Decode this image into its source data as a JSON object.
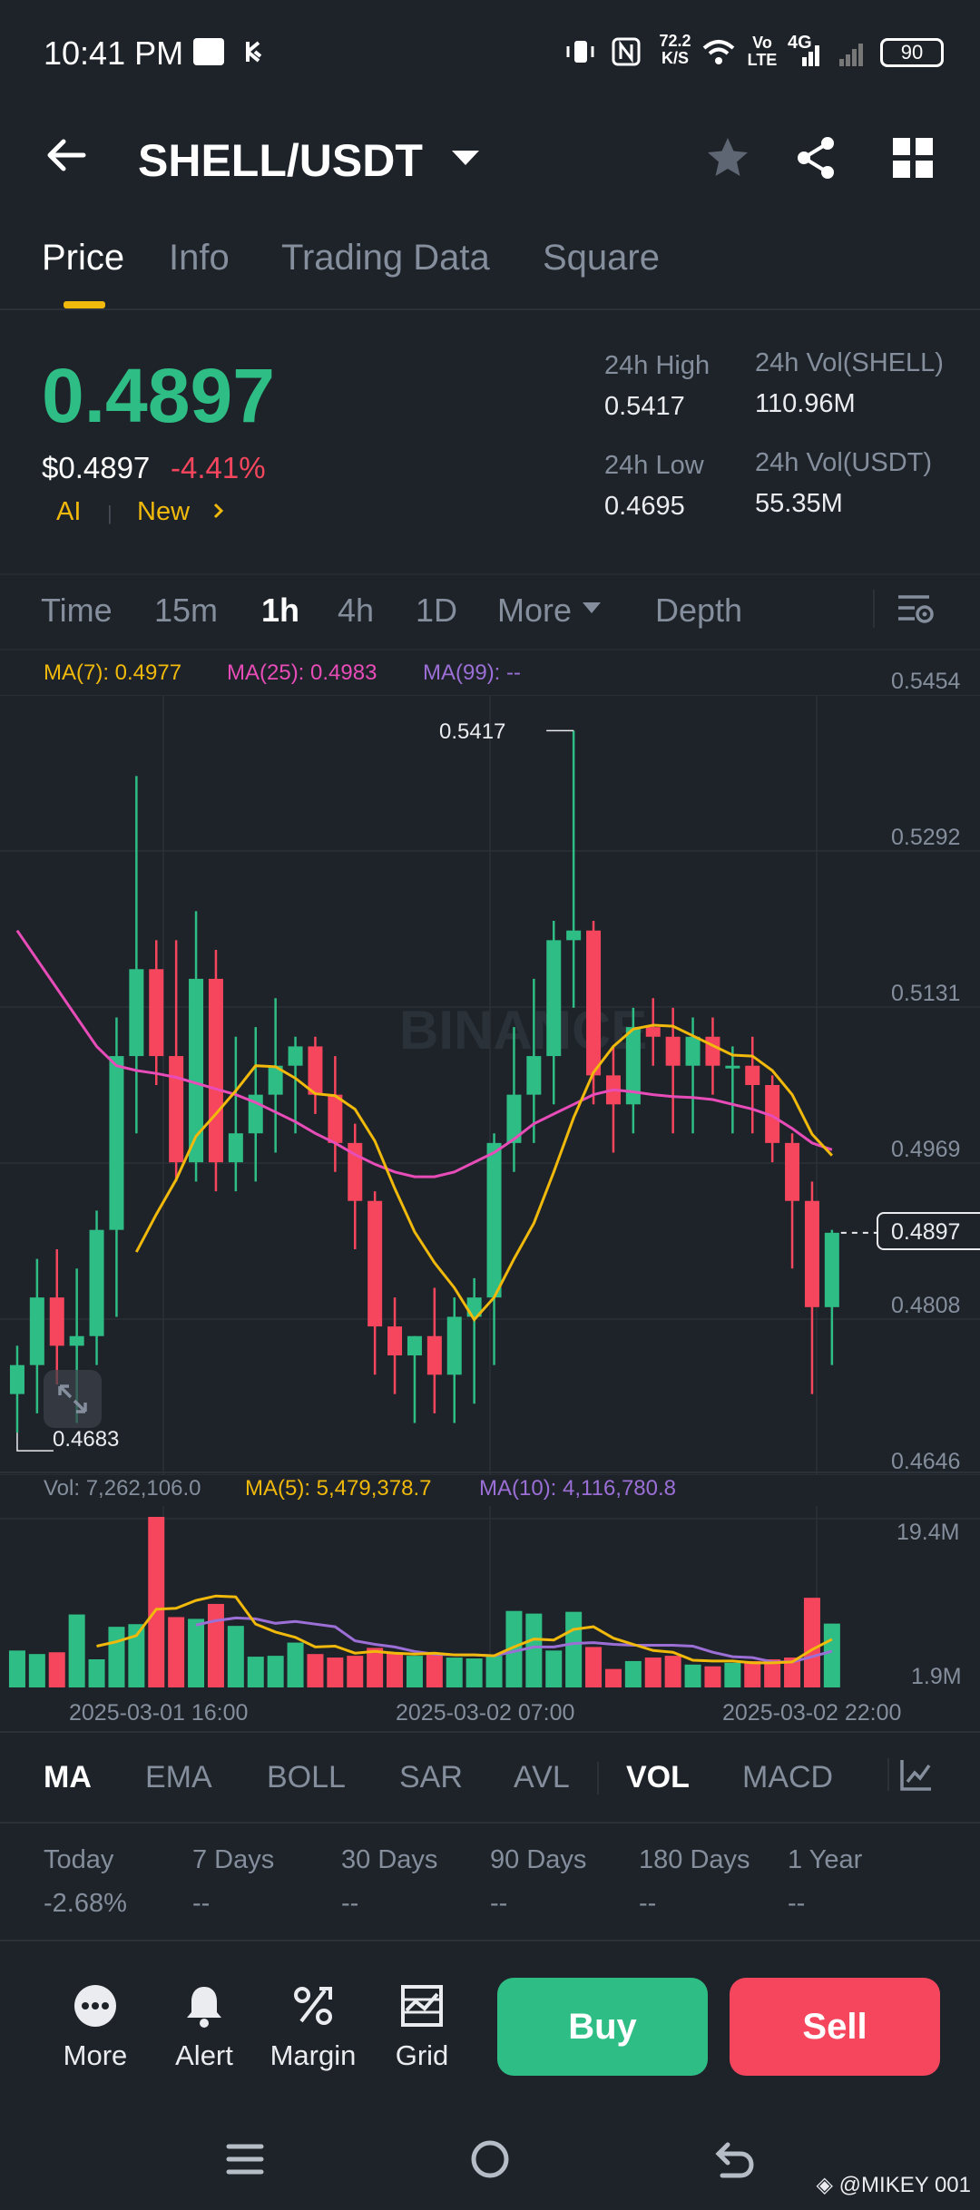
{
  "status_bar": {
    "time": "10:41 PM",
    "speed_value": "72.2",
    "speed_unit": "K/S",
    "volte": "Vo LTE",
    "network": "4G",
    "battery": "90"
  },
  "header": {
    "pair": "SHELL/USDT"
  },
  "tabs": [
    "Price",
    "Info",
    "Trading Data",
    "Square"
  ],
  "price": {
    "last": "0.4897",
    "usd": "$0.4897",
    "change_pct": "-4.41%",
    "ai_label": "AI",
    "new_label": "New",
    "high_label": "24h High",
    "high": "0.5417",
    "low_label": "24h Low",
    "low": "0.4695",
    "vol_base_label": "24h Vol(SHELL)",
    "vol_base": "110.96M",
    "vol_quote_label": "24h Vol(USDT)",
    "vol_quote": "55.35M"
  },
  "intervals": {
    "time": "Time",
    "m15": "15m",
    "h1": "1h",
    "h4": "4h",
    "d1": "1D",
    "more": "More",
    "depth": "Depth"
  },
  "legend": {
    "ma7": "MA(7): 0.4977",
    "ma25": "MA(25): 0.4983",
    "ma99": "MA(99): --",
    "vol": "Vol: 7,262,106.0",
    "vol_ma5": "MA(5): 5,479,378.7",
    "vol_ma10": "MA(10): 4,116,780.8"
  },
  "indicators": [
    "MA",
    "EMA",
    "BOLL",
    "SAR",
    "AVL",
    "VOL",
    "MACD"
  ],
  "performance": {
    "labels": [
      "Today",
      "7 Days",
      "30 Days",
      "90 Days",
      "180 Days",
      "1 Year"
    ],
    "values": [
      "-2.68%",
      "--",
      "--",
      "--",
      "--",
      "--"
    ]
  },
  "bottom_bar": {
    "more": "More",
    "alert": "Alert",
    "margin": "Margin",
    "grid": "Grid",
    "buy": "Buy",
    "sell": "Sell"
  },
  "watermark": "@MIKEY 001",
  "colors": {
    "up": "#2ebd85",
    "down": "#f6465d",
    "ma7": "#f0b90b",
    "ma25": "#e84cb8",
    "ma99": "#9b6fd6",
    "background": "#1e2329"
  },
  "chart_data": {
    "type": "candlestick",
    "x_tick_labels": [
      "2025-03-01 16:00",
      "2025-03-02 07:00",
      "2025-03-02 22:00"
    ],
    "y_tick_labels": [
      "0.5454",
      "0.5292",
      "0.5131",
      "0.4969",
      "0.4808",
      "0.4646"
    ],
    "ylim": [
      0.4646,
      0.5454
    ],
    "current_price_label": "0.4897",
    "high_label": "0.5417",
    "low_label": "0.4683",
    "volume_axis_labels": [
      "19.4M",
      "1.9M"
    ],
    "volume_ylim": [
      0,
      19.4
    ],
    "candles": [
      {
        "o": 0.473,
        "h": 0.478,
        "l": 0.469,
        "c": 0.476
      },
      {
        "o": 0.476,
        "h": 0.487,
        "l": 0.471,
        "c": 0.483
      },
      {
        "o": 0.483,
        "h": 0.488,
        "l": 0.474,
        "c": 0.478
      },
      {
        "o": 0.478,
        "h": 0.486,
        "l": 0.47,
        "c": 0.479
      },
      {
        "o": 0.479,
        "h": 0.492,
        "l": 0.476,
        "c": 0.49
      },
      {
        "o": 0.49,
        "h": 0.512,
        "l": 0.481,
        "c": 0.508
      },
      {
        "o": 0.508,
        "h": 0.537,
        "l": 0.5,
        "c": 0.517
      },
      {
        "o": 0.517,
        "h": 0.52,
        "l": 0.505,
        "c": 0.508
      },
      {
        "o": 0.508,
        "h": 0.52,
        "l": 0.495,
        "c": 0.497
      },
      {
        "o": 0.497,
        "h": 0.523,
        "l": 0.495,
        "c": 0.516
      },
      {
        "o": 0.516,
        "h": 0.519,
        "l": 0.494,
        "c": 0.497
      },
      {
        "o": 0.497,
        "h": 0.51,
        "l": 0.494,
        "c": 0.5
      },
      {
        "o": 0.5,
        "h": 0.511,
        "l": 0.495,
        "c": 0.504
      },
      {
        "o": 0.504,
        "h": 0.514,
        "l": 0.498,
        "c": 0.507
      },
      {
        "o": 0.507,
        "h": 0.51,
        "l": 0.5,
        "c": 0.509
      },
      {
        "o": 0.509,
        "h": 0.51,
        "l": 0.502,
        "c": 0.504
      },
      {
        "o": 0.504,
        "h": 0.508,
        "l": 0.496,
        "c": 0.499
      },
      {
        "o": 0.499,
        "h": 0.501,
        "l": 0.488,
        "c": 0.493
      },
      {
        "o": 0.493,
        "h": 0.494,
        "l": 0.475,
        "c": 0.48
      },
      {
        "o": 0.48,
        "h": 0.483,
        "l": 0.473,
        "c": 0.477
      },
      {
        "o": 0.477,
        "h": 0.479,
        "l": 0.47,
        "c": 0.479
      },
      {
        "o": 0.479,
        "h": 0.484,
        "l": 0.471,
        "c": 0.475
      },
      {
        "o": 0.475,
        "h": 0.483,
        "l": 0.47,
        "c": 0.481
      },
      {
        "o": 0.481,
        "h": 0.485,
        "l": 0.472,
        "c": 0.483
      },
      {
        "o": 0.483,
        "h": 0.5,
        "l": 0.476,
        "c": 0.499
      },
      {
        "o": 0.499,
        "h": 0.511,
        "l": 0.496,
        "c": 0.504
      },
      {
        "o": 0.504,
        "h": 0.516,
        "l": 0.499,
        "c": 0.508
      },
      {
        "o": 0.508,
        "h": 0.522,
        "l": 0.503,
        "c": 0.52
      },
      {
        "o": 0.52,
        "h": 0.5417,
        "l": 0.513,
        "c": 0.521
      },
      {
        "o": 0.521,
        "h": 0.522,
        "l": 0.503,
        "c": 0.506
      },
      {
        "o": 0.506,
        "h": 0.509,
        "l": 0.498,
        "c": 0.503
      },
      {
        "o": 0.503,
        "h": 0.513,
        "l": 0.5,
        "c": 0.511
      },
      {
        "o": 0.511,
        "h": 0.514,
        "l": 0.507,
        "c": 0.51
      },
      {
        "o": 0.51,
        "h": 0.513,
        "l": 0.5,
        "c": 0.507
      },
      {
        "o": 0.507,
        "h": 0.512,
        "l": 0.5,
        "c": 0.51
      },
      {
        "o": 0.51,
        "h": 0.512,
        "l": 0.504,
        "c": 0.507
      },
      {
        "o": 0.507,
        "h": 0.509,
        "l": 0.5,
        "c": 0.507
      },
      {
        "o": 0.507,
        "h": 0.51,
        "l": 0.5,
        "c": 0.505
      },
      {
        "o": 0.505,
        "h": 0.506,
        "l": 0.497,
        "c": 0.499
      },
      {
        "o": 0.499,
        "h": 0.5,
        "l": 0.486,
        "c": 0.493
      },
      {
        "o": 0.493,
        "h": 0.495,
        "l": 0.473,
        "c": 0.482
      },
      {
        "o": 0.482,
        "h": 0.49,
        "l": 0.476,
        "c": 0.4897
      }
    ],
    "ma7": [
      null,
      null,
      null,
      null,
      null,
      null,
      0.4877,
      0.4916,
      0.4952,
      0.4997,
      0.502,
      0.5044,
      0.507,
      0.5069,
      0.5057,
      0.5041,
      0.5039,
      0.5025,
      0.4992,
      0.4943,
      0.4898,
      0.4866,
      0.484,
      0.4807,
      0.483,
      0.487,
      0.4907,
      0.496,
      0.5016,
      0.5063,
      0.509,
      0.5108,
      0.5112,
      0.5111,
      0.5101,
      0.5091,
      0.5081,
      0.508,
      0.5065,
      0.504,
      0.4999,
      0.4977
    ],
    "ma25": [
      0.521,
      0.518,
      0.515,
      0.512,
      0.509,
      0.507,
      0.5065,
      0.5062,
      0.5058,
      0.5052,
      0.5046,
      0.504,
      0.5032,
      0.5022,
      0.5012,
      0.5,
      0.499,
      0.4978,
      0.4968,
      0.496,
      0.4955,
      0.4955,
      0.496,
      0.497,
      0.498,
      0.4994,
      0.501,
      0.502,
      0.503,
      0.504,
      0.5045,
      0.5043,
      0.504,
      0.5038,
      0.5037,
      0.5035,
      0.503,
      0.5025,
      0.5018,
      0.5005,
      0.499,
      0.4983
    ],
    "volume": [
      4.2,
      3.8,
      4.0,
      8.3,
      3.2,
      6.9,
      7.2,
      19.4,
      8.0,
      7.8,
      9.5,
      7.0,
      3.5,
      3.6,
      5.1,
      3.8,
      3.4,
      3.6,
      4.5,
      4.0,
      3.6,
      3.9,
      3.4,
      3.3,
      3.6,
      8.7,
      8.4,
      4.2,
      8.6,
      4.6,
      2.1,
      3.0,
      3.4,
      3.6,
      2.6,
      2.4,
      2.8,
      3.0,
      3.2,
      3.4,
      10.2,
      7.262
    ],
    "vol_ma5": [
      null,
      null,
      null,
      null,
      4.7,
      5.2,
      5.9,
      8.9,
      9.0,
      9.9,
      10.4,
      10.3,
      7.2,
      6.3,
      5.7,
      4.6,
      4.7,
      3.9,
      4.1,
      3.9,
      3.8,
      3.9,
      3.7,
      3.7,
      3.6,
      4.6,
      5.5,
      5.4,
      6.6,
      6.9,
      5.6,
      4.9,
      4.2,
      4.0,
      3.1,
      3.0,
      3.0,
      2.8,
      2.8,
      2.9,
      4.3,
      5.479
    ],
    "vol_ma10": [
      null,
      null,
      null,
      null,
      null,
      null,
      null,
      null,
      null,
      7.1,
      7.6,
      7.9,
      7.8,
      7.3,
      7.5,
      7.2,
      6.9,
      5.3,
      4.9,
      4.6,
      4.1,
      3.8,
      3.7,
      3.7,
      3.6,
      4.1,
      4.6,
      4.6,
      5.0,
      5.1,
      4.9,
      4.8,
      4.8,
      4.8,
      4.7,
      4.0,
      3.5,
      3.4,
      2.9,
      2.9,
      3.5,
      4.117
    ],
    "ma7_label": "MA(7): 0.4977",
    "ma25_label": "MA(25): 0.4983",
    "ma99_label": "MA(99): --"
  }
}
